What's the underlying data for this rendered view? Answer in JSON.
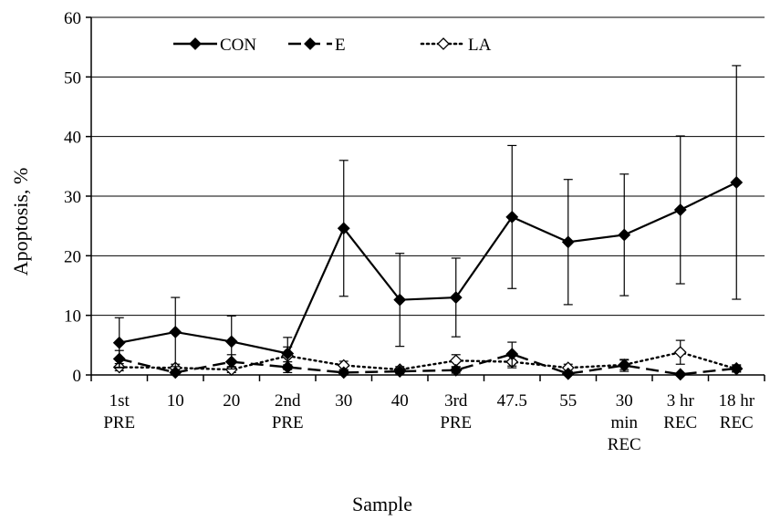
{
  "chart_data": {
    "type": "line",
    "title": "",
    "xlabel": "Sample",
    "ylabel": "Apoptosis, %",
    "ylim": [
      0,
      60
    ],
    "yticks": [
      0,
      10,
      20,
      30,
      40,
      50,
      60
    ],
    "grid": true,
    "legend_position": "top",
    "categories": [
      [
        "1st",
        "PRE"
      ],
      [
        "10"
      ],
      [
        "20"
      ],
      [
        "2nd",
        "PRE"
      ],
      [
        "30"
      ],
      [
        "40"
      ],
      [
        "3rd",
        "PRE"
      ],
      [
        "47.5"
      ],
      [
        "55"
      ],
      [
        "30",
        "min",
        "REC"
      ],
      [
        "3 hr",
        "REC"
      ],
      [
        "18 hr",
        "REC"
      ]
    ],
    "series": [
      {
        "name": "CON",
        "line": "solid",
        "marker": "diamond-filled",
        "values": [
          5.4,
          7.2,
          5.6,
          3.6,
          24.6,
          12.6,
          13.0,
          26.5,
          22.3,
          23.5,
          27.7,
          32.3
        ],
        "error": [
          4.2,
          5.8,
          4.3,
          2.7,
          11.4,
          7.8,
          6.6,
          12.0,
          10.5,
          10.2,
          12.4,
          19.6
        ]
      },
      {
        "name": "E",
        "line": "dashed",
        "marker": "diamond-filled",
        "values": [
          2.7,
          0.4,
          2.2,
          1.3,
          0.4,
          0.6,
          0.8,
          3.5,
          0.2,
          1.6,
          0.1,
          1.1
        ],
        "error": [
          1.4,
          0.5,
          1.2,
          0.9,
          0.4,
          0.4,
          0.5,
          2.0,
          0.3,
          1.0,
          0.2,
          0.6
        ]
      },
      {
        "name": "LA",
        "line": "dotted",
        "marker": "diamond-open",
        "values": [
          1.3,
          1.2,
          0.9,
          3.2,
          1.6,
          0.9,
          2.4,
          2.2,
          1.2,
          1.7,
          3.8,
          1.0
        ],
        "error": [
          0.6,
          0.6,
          0.5,
          1.5,
          0.7,
          0.5,
          1.0,
          1.0,
          0.6,
          0.8,
          2.0,
          0.5
        ]
      }
    ],
    "colors": {
      "line": "#000000",
      "grid": "#000000",
      "background": "#ffffff"
    }
  }
}
